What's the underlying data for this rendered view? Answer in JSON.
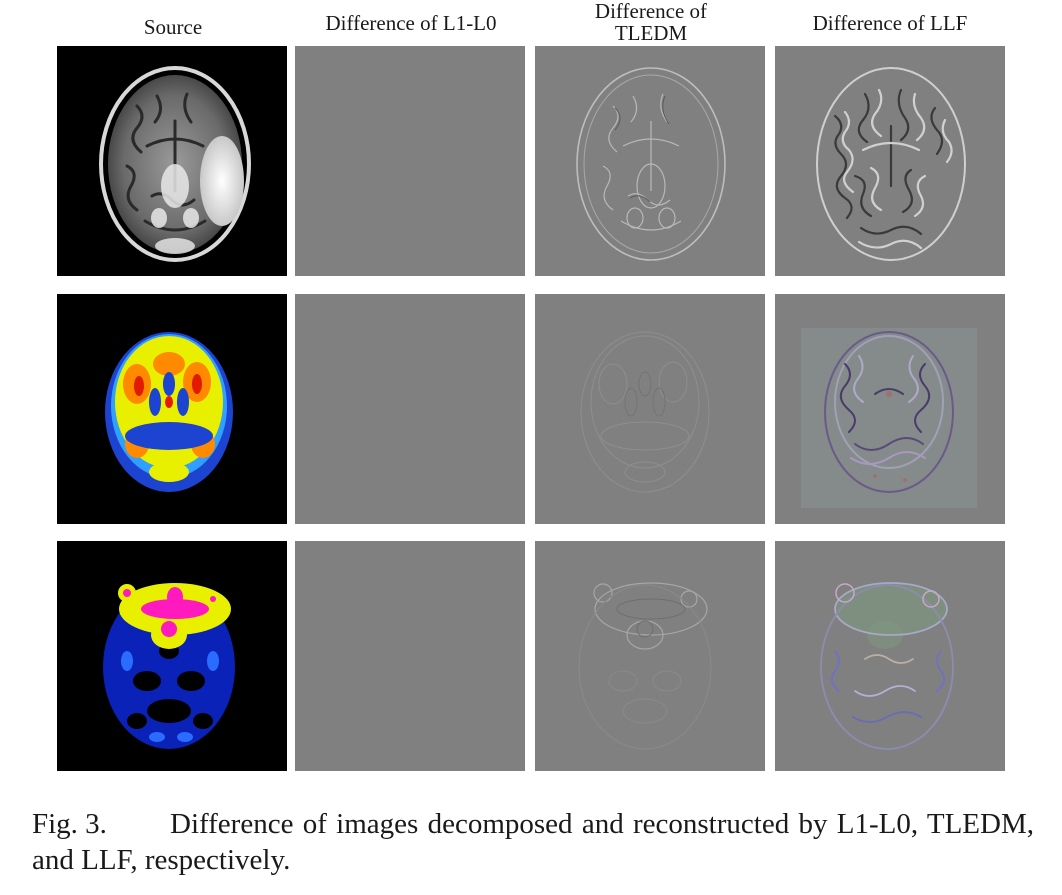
{
  "columns": [
    {
      "id": "source",
      "label": "Source"
    },
    {
      "id": "l1l0",
      "label": "Difference of L1-L0"
    },
    {
      "id": "tledm",
      "label_line1": "Difference of",
      "label_line2": "TLEDM"
    },
    {
      "id": "llf",
      "label": "Difference of LLF"
    }
  ],
  "rows": [
    {
      "id": "mri-t2",
      "source_style": "grayscale-mri"
    },
    {
      "id": "pet",
      "source_style": "jet-colormap"
    },
    {
      "id": "spect",
      "source_style": "jet-colormap"
    }
  ],
  "colors": {
    "difference_gray": "#808080",
    "source_background": "#000000"
  },
  "caption": {
    "label": "Fig. 3.",
    "text": "Difference of images decomposed and reconstructed by L1-L0, TLEDM, and LLF, respectively."
  }
}
